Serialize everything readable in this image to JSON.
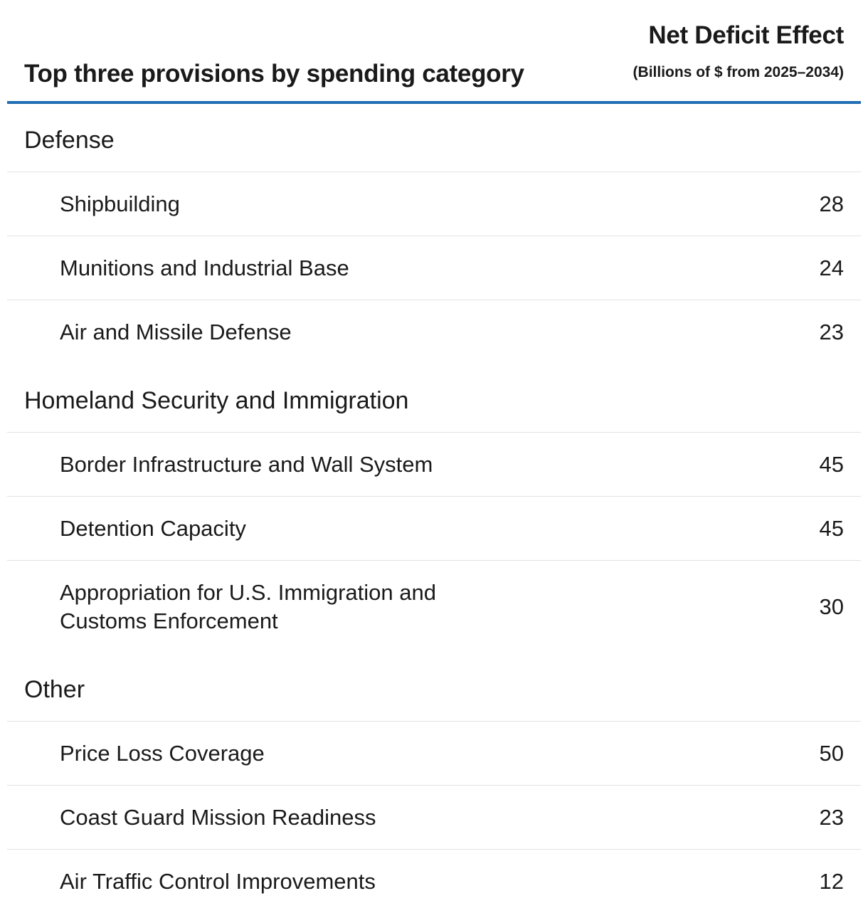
{
  "chart_data": {
    "type": "table",
    "title": "Top three provisions by spending category",
    "value_header": "Net Deficit Effect",
    "value_subheader": "(Billions of $ from 2025–2034)",
    "groups": [
      {
        "category": "Defense",
        "rows": [
          {
            "label": "Shipbuilding",
            "value": "28"
          },
          {
            "label": "Munitions and Industrial Base",
            "value": "24"
          },
          {
            "label": "Air and Missile Defense",
            "value": "23"
          }
        ]
      },
      {
        "category": "Homeland Security and Immigration",
        "rows": [
          {
            "label": "Border Infrastructure and Wall System",
            "value": "45"
          },
          {
            "label": "Detention Capacity",
            "value": "45"
          },
          {
            "label": "Appropriation for U.S. Immigration and Customs Enforcement",
            "value": "30"
          }
        ]
      },
      {
        "category": "Other",
        "rows": [
          {
            "label": "Price Loss Coverage",
            "value": "50"
          },
          {
            "label": "Coast Guard Mission Readiness",
            "value": "23"
          },
          {
            "label": "Air Traffic Control Improvements",
            "value": "12"
          }
        ]
      }
    ]
  },
  "colors": {
    "header_rule": "#1f6db3",
    "row_divider": "#e2e2e2",
    "text": "#1a1a1a"
  }
}
